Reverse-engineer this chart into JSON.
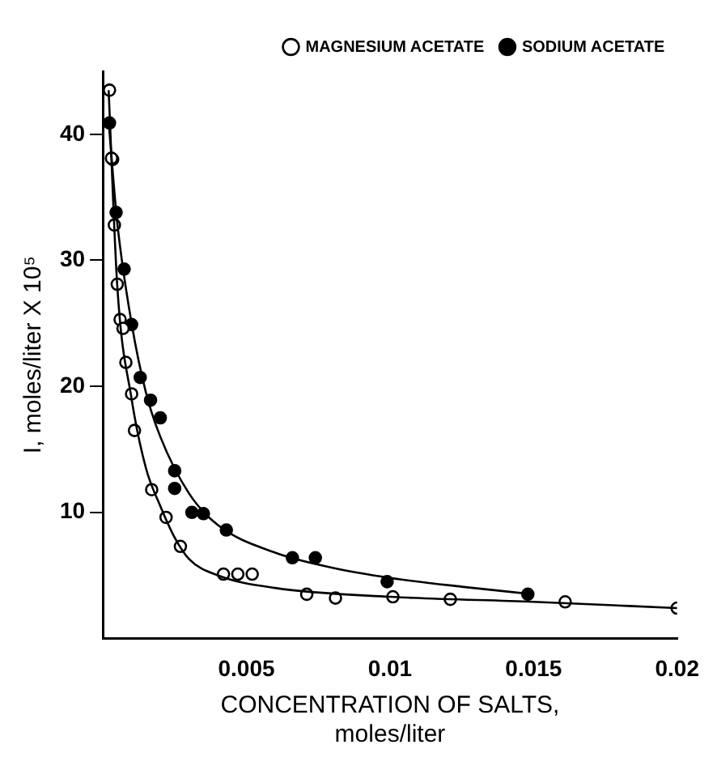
{
  "chart_data": {
    "type": "scatter",
    "xlabel": "CONCENTRATION OF SALTS,\nmoles/liter",
    "ylabel": "I, moles/liter X 10⁵",
    "xlim": [
      0,
      0.02
    ],
    "ylim": [
      0,
      45
    ],
    "xticks": [
      {
        "value": 0,
        "label": null
      },
      0.005,
      0.01,
      0.015,
      0.02
    ],
    "yticks": [
      10,
      20,
      30,
      40
    ],
    "grid": false,
    "legend": "top right",
    "marker": "circle",
    "series": [
      {
        "name": "SODIUM ACETATE",
        "color": "#000000",
        "x": [
          0.00023,
          0.00034,
          0.00046,
          0.00074,
          0.001,
          0.0013,
          0.00166,
          0.002,
          0.0025,
          0.0025,
          0.0031,
          0.0035,
          0.0043,
          0.0066,
          0.0074,
          0.0099,
          0.0148
        ],
        "values": [
          40.9,
          38.0,
          33.8,
          29.3,
          24.9,
          20.7,
          18.9,
          17.5,
          13.3,
          11.9,
          10.0,
          9.9,
          8.6,
          6.4,
          6.4,
          4.5,
          3.5
        ]
      },
      {
        "name": "MAGNESIUM ACETATE",
        "color": "#ffffff",
        "x": [
          0.00023,
          0.0003,
          0.0004,
          0.0005,
          0.0006,
          0.0007,
          0.0008,
          0.001,
          0.0011,
          0.0017,
          0.0022,
          0.0027,
          0.0042,
          0.0047,
          0.0052,
          0.0071,
          0.0081,
          0.0101,
          0.0121,
          0.0161,
          0.02
        ],
        "values": [
          43.5,
          38.1,
          32.8,
          28.1,
          25.3,
          24.6,
          21.9,
          19.4,
          16.5,
          11.8,
          9.6,
          7.3,
          5.1,
          5.1,
          5.1,
          3.5,
          3.2,
          3.3,
          3.1,
          2.9,
          2.4
        ]
      },
      {
        "type": "line",
        "color": "#000000",
        "marker": "none",
        "x": [
          0.0002,
          0.0005,
          0.001,
          0.0015,
          0.002,
          0.003,
          0.004,
          0.006,
          0.008,
          0.01,
          0.0125,
          0.015
        ],
        "values": [
          41,
          33,
          25,
          19.5,
          16,
          11.5,
          9,
          6.8,
          5.6,
          4.8,
          4.1,
          3.5
        ]
      },
      {
        "type": "line",
        "color": "#000000",
        "marker": "none",
        "x": [
          0.0002,
          0.0005,
          0.001,
          0.0015,
          0.002,
          0.0025,
          0.003,
          0.004,
          0.006,
          0.01,
          0.015,
          0.02
        ],
        "values": [
          43.5,
          28,
          19,
          13.5,
          10.5,
          8,
          6.3,
          5,
          4,
          3.3,
          2.9,
          2.4
        ]
      }
    ]
  }
}
